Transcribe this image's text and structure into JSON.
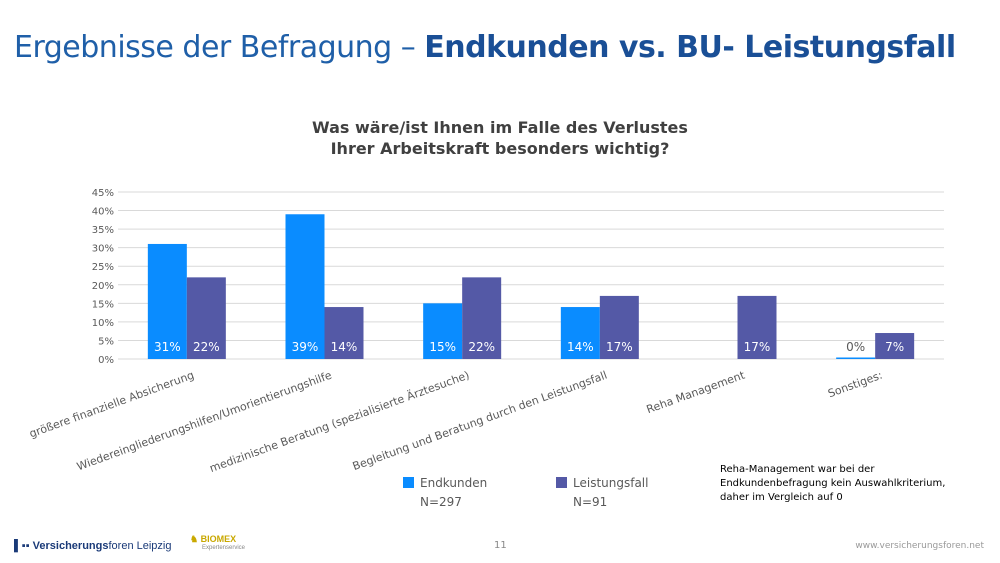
{
  "header": {
    "title_light": "Ergebnisse der Befragung – ",
    "title_bold": "Endkunden vs. BU- Leistungsfall"
  },
  "chart_data": {
    "type": "bar",
    "title": [
      "Was wäre/ist Ihnen im Falle des Verlustes",
      "Ihrer Arbeitskraft besonders wichtig?"
    ],
    "categories": [
      "größere finanzielle Absicherung",
      "Wiedereingliederungshilfen/Umorientierungshilfe",
      "medizinische Beratung (spezialisierte Ärztesuche)",
      "Begleitung und Beratung durch den Leistungsfall",
      "Reha Management",
      "Sonstiges:"
    ],
    "series": [
      {
        "name": "Endkunden",
        "sample": "N=297",
        "color": "#0a8cff",
        "values": [
          31,
          39,
          15,
          14,
          null,
          0
        ],
        "labels": [
          "31%",
          "39%",
          "15%",
          "14%",
          "",
          "0%"
        ]
      },
      {
        "name": "Leistungsfall",
        "sample": "N=91",
        "color": "#5459a6",
        "values": [
          22,
          14,
          22,
          17,
          17,
          7
        ],
        "labels": [
          "22%",
          "14%",
          "22%",
          "17%",
          "17%",
          "7%"
        ]
      }
    ],
    "ylim": [
      0,
      45
    ],
    "yticks": [
      "0%",
      "5%",
      "10%",
      "15%",
      "20%",
      "25%",
      "30%",
      "35%",
      "40%",
      "45%"
    ],
    "grid": true,
    "legend": "bottom"
  },
  "note": [
    "Reha-Management war bei der",
    "Endkundenbefragung kein Auswahlkriterium,",
    "daher im Vergleich auf 0"
  ],
  "footer": {
    "logo_bold": "Versicherungs",
    "logo_light": "foren Leipzig",
    "partner": "BIOMEX",
    "partner_sub": "Expertenservice",
    "page": "11",
    "url": "www.versicherungsforen.net"
  }
}
